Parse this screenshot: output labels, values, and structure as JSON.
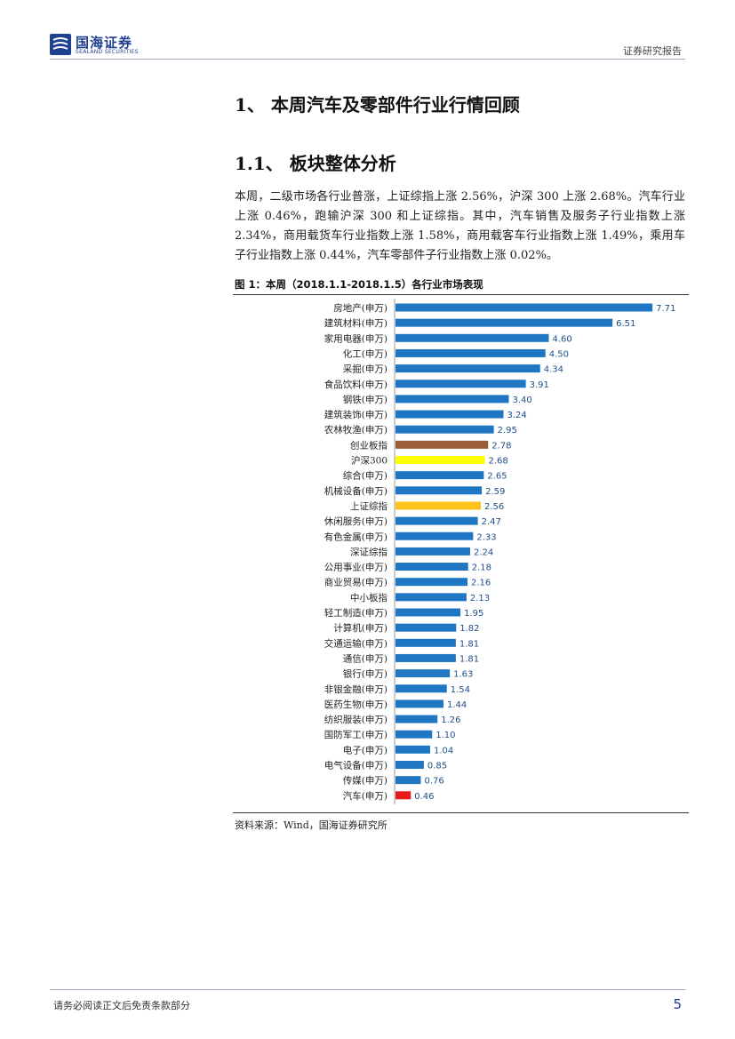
{
  "header": {
    "logo_cn": "国海证券",
    "logo_en": "SEALAND SECURITIES",
    "report_type": "证券研究报告"
  },
  "section": {
    "h1": "1、 本周汽车及零部件行业行情回顾",
    "h2": "1.1、 板块整体分析"
  },
  "paragraph": "本周，二级市场各行业普涨，上证综指上涨 2.56%，沪深 300 上涨 2.68%。汽车行业上涨 0.46%，跑输沪深 300 和上证综指。其中，汽车销售及服务子行业指数上涨 2.34%，商用载货车行业指数上涨 1.58%，商用载客车行业指数上涨 1.49%，乘用车子行业指数上涨 0.44%，汽车零部件子行业指数上涨 0.02%。",
  "figure": {
    "caption": "图 1：本周（2018.1.1-2018.1.5）各行业市场表现",
    "source": "资料来源：Wind，国海证券研究所"
  },
  "colors": {
    "default_bar": "#1f77c4",
    "highlight_cyb": "#9a5f36",
    "highlight_hs300": "#ffff00",
    "highlight_sz": "#ffc21a",
    "highlight_auto": "#e8191b",
    "value_text": "#1f4e8a"
  },
  "chart_data": {
    "type": "bar",
    "orientation": "horizontal",
    "categories": [
      "房地产(申万)",
      "建筑材料(申万)",
      "家用电器(申万)",
      "化工(申万)",
      "采掘(申万)",
      "食品饮料(申万)",
      "钢铁(申万)",
      "建筑装饰(申万)",
      "农林牧渔(申万)",
      "创业板指",
      "沪深300",
      "综合(申万)",
      "机械设备(申万)",
      "上证综指",
      "休闲服务(申万)",
      "有色金属(申万)",
      "深证综指",
      "公用事业(申万)",
      "商业贸易(申万)",
      "中小板指",
      "轻工制造(申万)",
      "计算机(申万)",
      "交通运输(申万)",
      "通信(申万)",
      "银行(申万)",
      "非银金融(申万)",
      "医药生物(申万)",
      "纺织服装(申万)",
      "国防军工(申万)",
      "电子(申万)",
      "电气设备(申万)",
      "传媒(申万)",
      "汽车(申万)"
    ],
    "values": [
      7.71,
      6.51,
      4.6,
      4.5,
      4.34,
      3.91,
      3.4,
      3.24,
      2.95,
      2.78,
      2.68,
      2.65,
      2.59,
      2.56,
      2.47,
      2.33,
      2.24,
      2.18,
      2.16,
      2.13,
      1.95,
      1.82,
      1.81,
      1.81,
      1.63,
      1.54,
      1.44,
      1.26,
      1.1,
      1.04,
      0.85,
      0.76,
      0.46
    ],
    "value_labels": [
      "7.71",
      "6.51",
      "4.60",
      "4.50",
      "4.34",
      "3.91",
      "3.40",
      "3.24",
      "2.95",
      "2.78",
      "2.68",
      "2.65",
      "2.59",
      "2.56",
      "2.47",
      "2.33",
      "2.24",
      "2.18",
      "2.16",
      "2.13",
      "1.95",
      "1.82",
      "1.81",
      "1.81",
      "1.63",
      "1.54",
      "1.44",
      "1.26",
      "1.10",
      "1.04",
      "0.85",
      "0.76",
      "0.46"
    ],
    "highlights": {
      "创业板指": "highlight_cyb",
      "沪深300": "highlight_hs300",
      "上证综指": "highlight_sz",
      "汽车(申万)": "highlight_auto"
    },
    "xlim": [
      0,
      8
    ],
    "grid": false,
    "legend": "none"
  },
  "footer": {
    "disclaimer": "请务必阅读正文后免责条款部分",
    "page": "5"
  }
}
